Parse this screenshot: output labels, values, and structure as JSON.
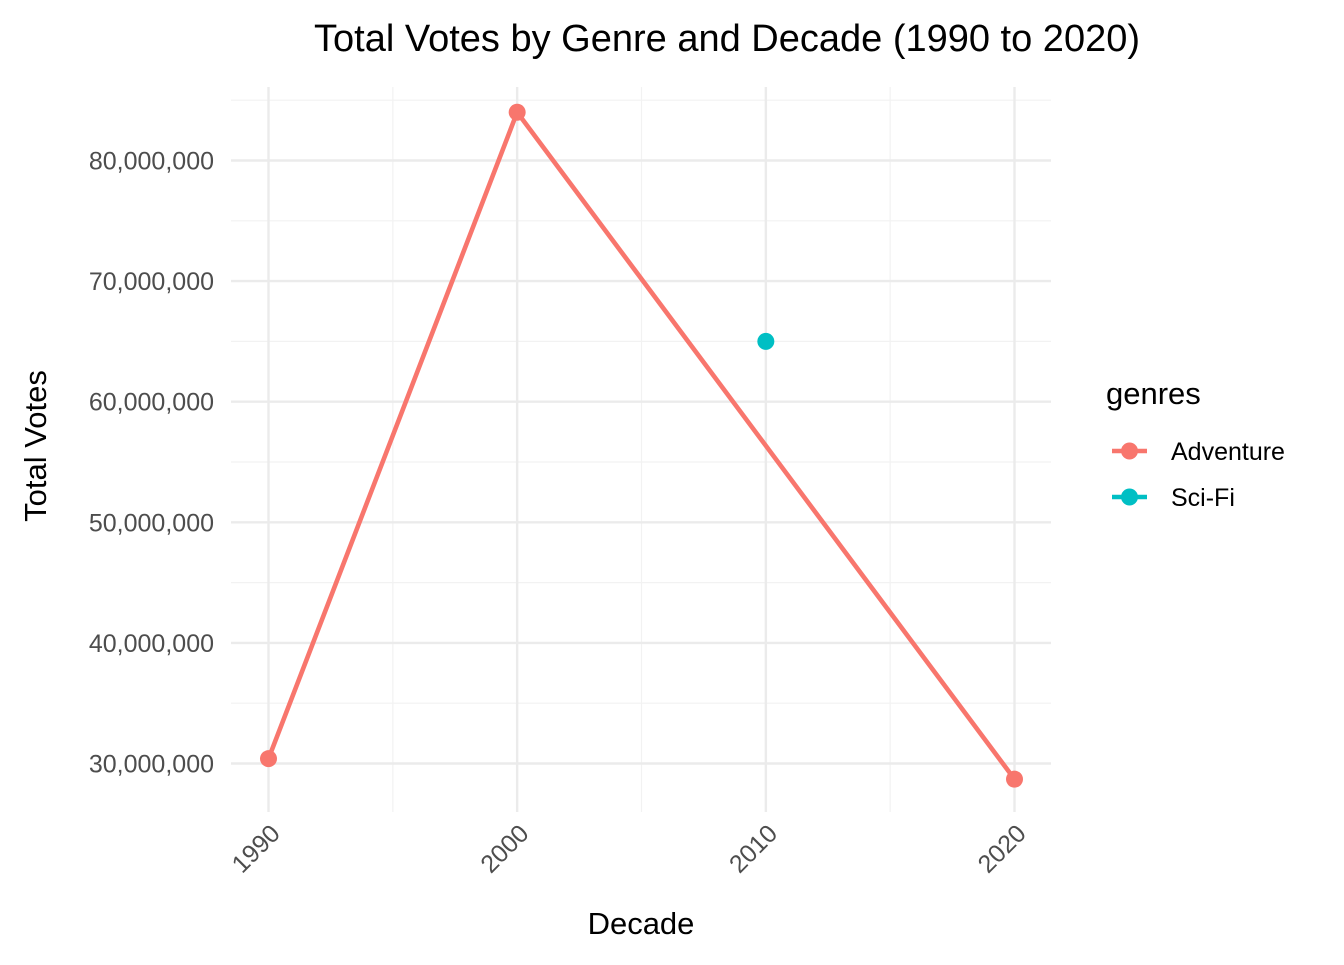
{
  "chart_data": {
    "type": "line",
    "title": "Total Votes by Genre and Decade (1990 to 2020)",
    "xlabel": "Decade",
    "ylabel": "Total Votes",
    "x_ticks": [
      "1990",
      "2000",
      "2010",
      "2020"
    ],
    "y_ticks": [
      "30,000,000",
      "40,000,000",
      "50,000,000",
      "60,000,000",
      "70,000,000",
      "80,000,000"
    ],
    "y_tick_values": [
      30000000,
      40000000,
      50000000,
      60000000,
      70000000,
      80000000
    ],
    "xlim": [
      1985,
      2025
    ],
    "ylim": [
      26000000,
      89000000
    ],
    "grid": true,
    "legend": {
      "title": "genres",
      "placement": "right"
    },
    "series": [
      {
        "name": "Adventure",
        "color": "#F8766D",
        "points": [
          {
            "x": 1990,
            "y": 30400000
          },
          {
            "x": 2000,
            "y": 84000000
          },
          {
            "x": 2020,
            "y": 28700000
          }
        ]
      },
      {
        "name": "Sci-Fi",
        "color": "#00BFC4",
        "points": [
          {
            "x": 2010,
            "y": 65000000
          }
        ]
      }
    ]
  }
}
